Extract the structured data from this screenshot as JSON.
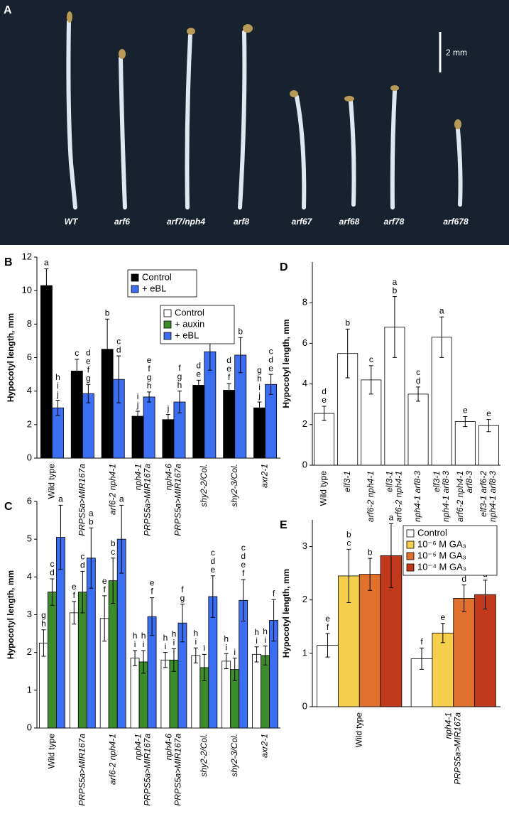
{
  "photo": {
    "panel": "A",
    "scale_bar": "2 mm",
    "labels": [
      "WT",
      "arf6",
      "arf7/nph4",
      "arf8",
      "arf67",
      "arf68",
      "arf78",
      "arf678"
    ]
  },
  "chart_data": [
    {
      "type": "bar",
      "panel": "B",
      "ylabel": "Hypocotyl length, mm",
      "ylim": [
        0,
        12
      ],
      "yticks": [
        0,
        2,
        4,
        6,
        8,
        10,
        12
      ],
      "categories": [
        [
          "Wild type"
        ],
        [
          "PRPS5a>MIR167a"
        ],
        [
          "arf6-2 nph4-1"
        ],
        [
          "nph4-1",
          "PRPS5a>MIR167a"
        ],
        [
          "nph4-6",
          "PRPS5a>MIR167a"
        ],
        [
          "shy2-2/Col."
        ],
        [
          "shy2-3/Col."
        ],
        [
          "axr2-1"
        ]
      ],
      "series": [
        {
          "name": "Control",
          "color": "#000000",
          "values": [
            10.3,
            5.2,
            6.5,
            2.5,
            2.3,
            4.35,
            4.05,
            3.0
          ],
          "errors": [
            1.0,
            0.7,
            1.8,
            0.3,
            0.3,
            0.3,
            0.4,
            0.35
          ],
          "letters": [
            [
              "a"
            ],
            [
              "c"
            ],
            [
              "b"
            ],
            [
              "i",
              "j"
            ],
            [
              "j"
            ],
            [
              "d",
              "e"
            ],
            [
              "d",
              "e",
              "f"
            ],
            [
              "g",
              "h",
              "i",
              "j"
            ]
          ]
        },
        {
          "name": "+ eBL",
          "color": "#3b6ef0",
          "values": [
            3.0,
            3.85,
            4.7,
            3.65,
            3.35,
            6.35,
            6.15,
            4.4
          ],
          "errors": [
            0.45,
            0.55,
            1.4,
            0.3,
            0.65,
            1.1,
            1.05,
            0.6
          ],
          "letters": [
            [
              "h",
              "i",
              "j"
            ],
            [
              "d",
              "e",
              "f",
              "g"
            ],
            [
              "c",
              "d"
            ],
            [
              "e",
              "f",
              "g",
              "h"
            ],
            [
              "f",
              "g",
              "h"
            ],
            [
              "b"
            ],
            [
              "b"
            ],
            [
              "c",
              "d",
              "e"
            ]
          ]
        }
      ]
    },
    {
      "type": "bar",
      "panel": "C",
      "ylabel": "Hypocotyl length, mm",
      "ylim": [
        0,
        6
      ],
      "yticks": [
        0,
        1,
        2,
        3,
        4,
        5,
        6
      ],
      "categories": [
        [
          "Wild type"
        ],
        [
          "PRPS5a>MIR167a"
        ],
        [
          "arf6-2 nph4-1"
        ],
        [
          "nph4-1",
          "PRPS5a>MIR167a"
        ],
        [
          "nph4-6",
          "PRPS5a>MIR167a"
        ],
        [
          "shy2-2/Col."
        ],
        [
          "shy2-3/Col."
        ],
        [
          "axr2-1"
        ]
      ],
      "series": [
        {
          "name": "Control",
          "color": "#ffffff",
          "values": [
            2.25,
            3.05,
            2.9,
            1.85,
            1.8,
            1.92,
            1.77,
            1.95
          ],
          "errors": [
            0.35,
            0.3,
            0.6,
            0.2,
            0.2,
            0.2,
            0.2,
            0.2
          ],
          "letters": [
            [
              "g",
              "h"
            ],
            [
              "e",
              "f"
            ],
            [
              "e",
              "f"
            ],
            [
              "h",
              "i"
            ],
            [
              "h",
              "i"
            ],
            [
              "h",
              "i"
            ],
            [
              "h",
              "i"
            ],
            [
              "h",
              "i"
            ]
          ]
        },
        {
          "name": "+ auxin",
          "color": "#3c8c2c",
          "values": [
            3.6,
            3.6,
            3.9,
            1.75,
            1.8,
            1.6,
            1.55,
            1.92
          ],
          "errors": [
            0.35,
            0.55,
            0.6,
            0.3,
            0.3,
            0.35,
            0.3,
            0.25
          ],
          "letters": [
            [
              "c",
              "d"
            ],
            [
              "c",
              "d"
            ],
            [
              "b",
              "c"
            ],
            [
              "h",
              "i"
            ],
            [
              "h",
              "i"
            ],
            [
              "i"
            ],
            [
              "i"
            ],
            [
              "h",
              "i"
            ]
          ]
        },
        {
          "name": "+ eBL",
          "color": "#3b6ef0",
          "values": [
            5.05,
            4.5,
            5.0,
            2.95,
            2.78,
            3.48,
            3.38,
            2.85
          ],
          "errors": [
            0.85,
            0.8,
            0.9,
            0.5,
            0.5,
            0.55,
            0.55,
            0.55
          ],
          "letters": [
            [
              "a"
            ],
            [
              "a",
              "b"
            ],
            [
              "a"
            ],
            [
              "e",
              "f"
            ],
            [
              "f",
              "g"
            ],
            [
              "c",
              "d",
              "e"
            ],
            [
              "c",
              "d",
              "e",
              "f"
            ],
            [
              "f"
            ]
          ]
        }
      ]
    },
    {
      "type": "bar",
      "panel": "D",
      "ylabel": "Hypocotyl length, mm",
      "ylim": [
        0,
        10
      ],
      "yticks": [
        0,
        2,
        4,
        6,
        8
      ],
      "categories": [
        [
          "Wild type"
        ],
        [
          "elf3-1"
        ],
        [
          "arf6-2 nph4-1"
        ],
        [
          "elf3-1",
          "arf6-2 nph4-1"
        ],
        [
          "nph4-1 arf8-3"
        ],
        [
          "elf3-1",
          "nph4-1 arf8-3"
        ],
        [
          "arf6-2 nph4-1",
          "arf8-3"
        ],
        [
          "elf3-1 arf6-2",
          "nph4-1 arf8-3"
        ]
      ],
      "series": [
        {
          "color": "#ffffff",
          "values": [
            2.55,
            5.5,
            4.2,
            6.8,
            3.5,
            6.3,
            2.15,
            1.95
          ],
          "errors": [
            0.35,
            1.2,
            0.7,
            1.5,
            0.35,
            1.0,
            0.25,
            0.3
          ],
          "letters": [
            [
              "d",
              "e"
            ],
            [
              "b"
            ],
            [
              "c"
            ],
            [
              "a",
              "b"
            ],
            [
              "c",
              "d"
            ],
            [
              "a"
            ],
            [
              "e"
            ],
            [
              "e"
            ]
          ]
        }
      ]
    },
    {
      "type": "bar",
      "panel": "E",
      "ylabel": "Hypocotyl length, mm",
      "ylim": [
        0,
        3.5
      ],
      "yticks": [
        0,
        1,
        2,
        3
      ],
      "categories": [
        [
          "Wild type"
        ],
        [
          "nph4-1",
          "PRPS5a>MIR167a"
        ]
      ],
      "series": [
        {
          "name": "Control",
          "color": "#ffffff",
          "values": [
            1.15,
            0.9
          ],
          "errors": [
            0.22,
            0.2
          ],
          "letters": [
            [
              "e",
              "f"
            ],
            [
              "f"
            ]
          ]
        },
        {
          "name": "10⁻⁶ M GA₃",
          "color": "#f6d04c",
          "values": [
            2.45,
            1.38
          ],
          "errors": [
            0.5,
            0.18
          ],
          "letters": [
            [
              "b",
              "c"
            ],
            [
              "e"
            ]
          ]
        },
        {
          "name": "10⁻⁵ M GA₃",
          "color": "#e1702c",
          "values": [
            2.48,
            2.03
          ],
          "errors": [
            0.3,
            0.25
          ],
          "letters": [
            [
              "b"
            ],
            [
              "d"
            ]
          ]
        },
        {
          "name": "10⁻⁴ M GA₃",
          "color": "#c0391b",
          "values": [
            2.83,
            2.1
          ],
          "errors": [
            0.6,
            0.27
          ],
          "letters": [
            [
              "a"
            ],
            [
              "c",
              "d"
            ]
          ]
        }
      ]
    }
  ]
}
